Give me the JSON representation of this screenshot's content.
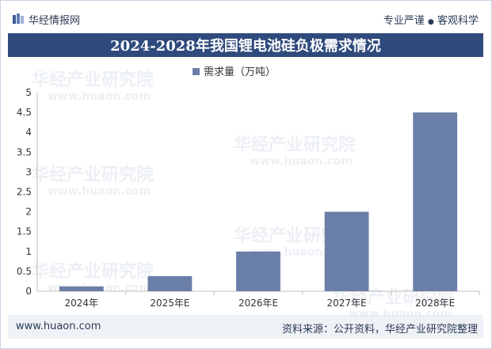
{
  "brand": {
    "name": "华经情报网",
    "tagline_left": "专业严谨",
    "separator": "●",
    "tagline_right": "客观科学"
  },
  "footer": {
    "website": "www.huaon.com",
    "source": "资料来源：公开资料，华经产业研究院整理"
  },
  "watermark": {
    "text": "华经产业研究院",
    "url": "www.huaon.com"
  },
  "colors": {
    "banner": "#2f4a7c",
    "bar": "#6a7fa8",
    "text": "#2b3a55"
  },
  "chart_data": {
    "type": "bar",
    "title": "2024-2028年我国锂电池硅负极需求情况",
    "categories": [
      "2024年",
      "2025年E",
      "2026年E",
      "2027年E",
      "2028年E"
    ],
    "series": [
      {
        "name": "需求量（万吨）",
        "values": [
          0.12,
          0.38,
          1.0,
          2.0,
          4.5
        ]
      }
    ],
    "xlabel": "",
    "ylabel": "",
    "ylim": [
      0,
      5
    ],
    "yticks": [
      "0",
      "0.5",
      "1",
      "1.5",
      "2",
      "2.5",
      "3",
      "3.5",
      "4",
      "4.5",
      "5"
    ],
    "legend": "top-center",
    "grid": false
  }
}
